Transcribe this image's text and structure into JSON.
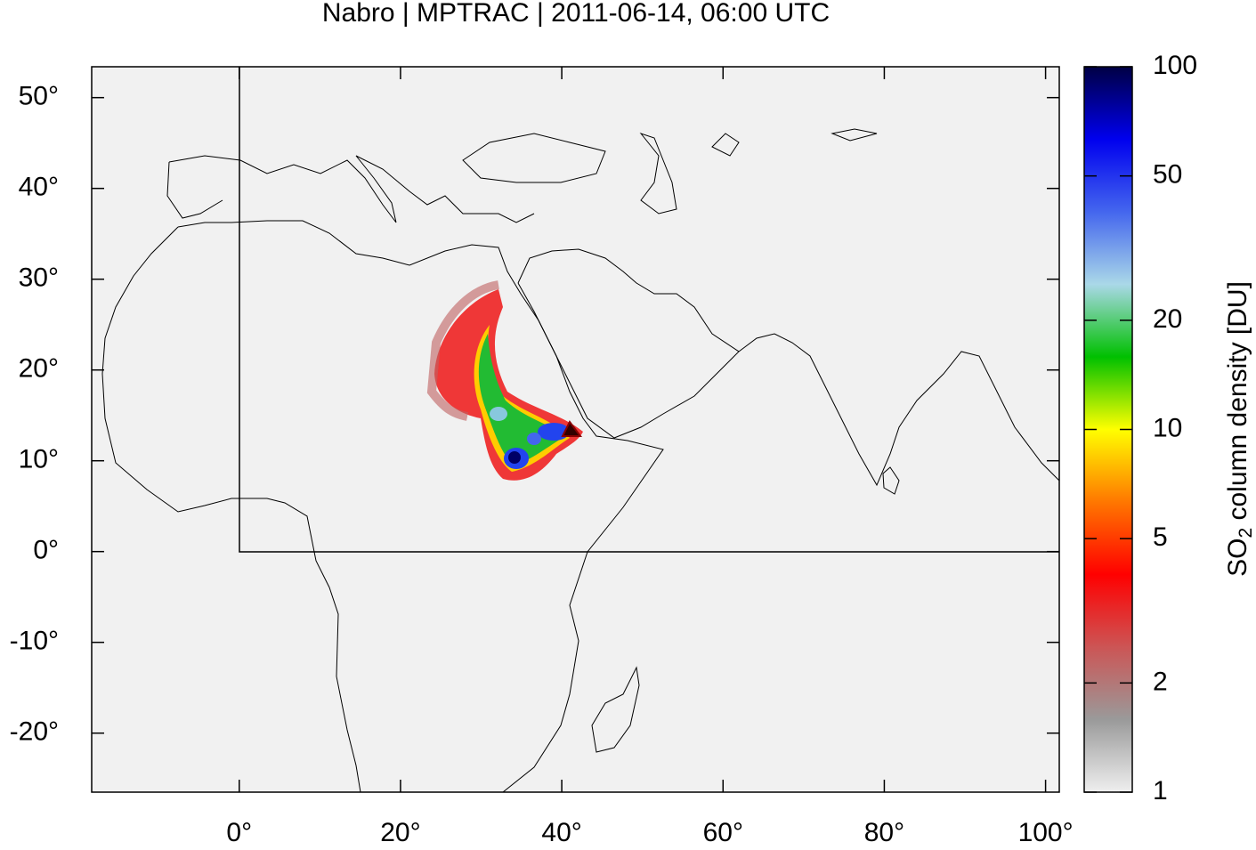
{
  "chart_data": {
    "type": "map",
    "title": "Nabro | MPTRAC | 2011-06-14, 06:00 UTC",
    "xlim": [
      -18.3,
      101.7
    ],
    "ylim": [
      -26.5,
      53.4
    ],
    "xticks": [
      {
        "value": 0,
        "label": "0°"
      },
      {
        "value": 20,
        "label": "20°"
      },
      {
        "value": 40,
        "label": "40°"
      },
      {
        "value": 60,
        "label": "60°"
      },
      {
        "value": 80,
        "label": "80°"
      },
      {
        "value": 100,
        "label": "100°"
      }
    ],
    "yticks": [
      {
        "value": -20,
        "label": "-20°"
      },
      {
        "value": -10,
        "label": "-10°"
      },
      {
        "value": 0,
        "label": "0°"
      },
      {
        "value": 10,
        "label": "10°"
      },
      {
        "value": 20,
        "label": "20°"
      },
      {
        "value": 30,
        "label": "30°"
      },
      {
        "value": 40,
        "label": "40°"
      },
      {
        "value": 50,
        "label": "50°"
      }
    ],
    "colorbar": {
      "label": {
        "main": "SO",
        "subscript": "2",
        "rest": " column density [DU]"
      },
      "scale": "log",
      "lim": [
        1,
        100
      ],
      "ticks": [
        1,
        2,
        5,
        10,
        20,
        50,
        100
      ],
      "colormap": [
        "#efefef",
        "#9a9a9a",
        "#cc5555",
        "#ff0000",
        "#ff7700",
        "#ffff00",
        "#00c000",
        "#aad8e8",
        "#4466ee",
        "#0000ee",
        "#000044"
      ]
    }
  }
}
